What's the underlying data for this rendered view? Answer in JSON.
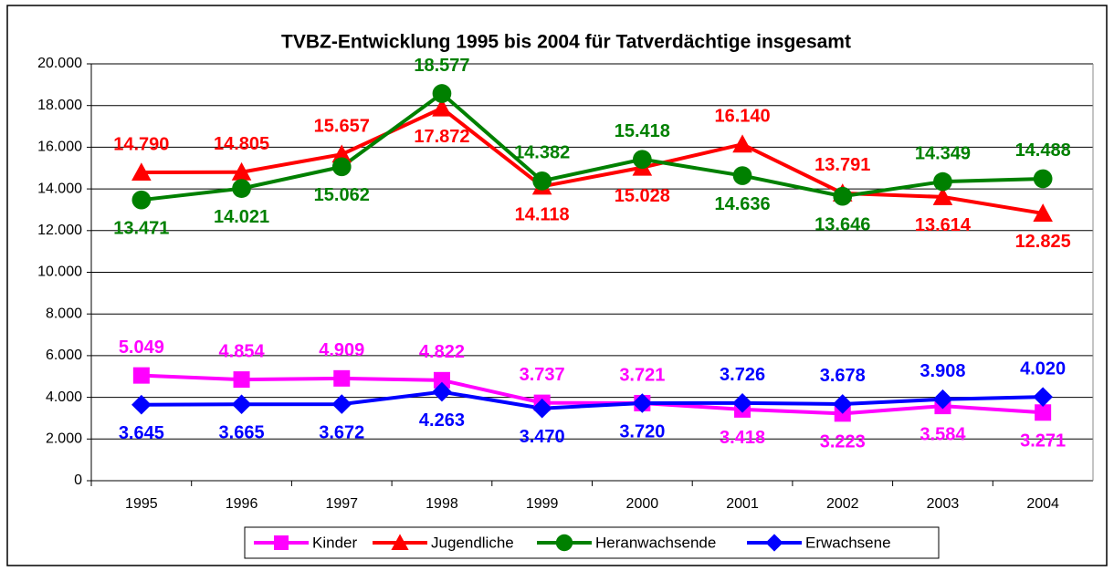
{
  "chart_data": {
    "type": "line",
    "title": "TVBZ-Entwicklung 1995 bis 2004 für Tatverdächtige insgesamt",
    "categories": [
      "1995",
      "1996",
      "1997",
      "1998",
      "1999",
      "2000",
      "2001",
      "2002",
      "2003",
      "2004"
    ],
    "series": [
      {
        "name": "Kinder",
        "color": "#ff00ff",
        "marker": "square",
        "values": [
          5049,
          4854,
          4909,
          4822,
          3737,
          3721,
          3418,
          3223,
          3584,
          3271
        ],
        "value_labels": [
          "5.049",
          "4.854",
          "4.909",
          "4.822",
          "3.737",
          "3.721",
          "3.418",
          "3.223",
          "3.584",
          "3.271"
        ]
      },
      {
        "name": "Jugendliche",
        "color": "#ff0000",
        "marker": "triangle",
        "values": [
          14790,
          14805,
          15657,
          17872,
          14118,
          15028,
          16140,
          13791,
          13614,
          12825
        ],
        "value_labels": [
          "14.790",
          "14.805",
          "15.657",
          "17.872",
          "14.118",
          "15.028",
          "16.140",
          "13.791",
          "13.614",
          "12.825"
        ]
      },
      {
        "name": "Heranwachsende",
        "color": "#008000",
        "marker": "circle",
        "values": [
          13471,
          14021,
          15062,
          18577,
          14382,
          15418,
          14636,
          13646,
          14349,
          14488
        ],
        "value_labels": [
          "13.471",
          "14.021",
          "15.062",
          "18.577",
          "14.382",
          "15.418",
          "14.636",
          "13.646",
          "14.349",
          "14.488"
        ]
      },
      {
        "name": "Erwachsene",
        "color": "#0000ff",
        "marker": "diamond",
        "values": [
          3645,
          3665,
          3672,
          4263,
          3470,
          3720,
          3726,
          3678,
          3908,
          4020
        ],
        "value_labels": [
          "3.645",
          "3.665",
          "3.672",
          "4.263",
          "3.470",
          "3.720",
          "3.726",
          "3.678",
          "3.908",
          "4.020"
        ]
      }
    ],
    "ylim": [
      0,
      20000
    ],
    "yticks": [
      0,
      {
        "value": 2000,
        "label": "2.000"
      },
      {
        "value": 4000,
        "label": "4.000"
      },
      {
        "value": 6000,
        "label": "6.000"
      },
      {
        "value": 8000,
        "label": "8.000"
      },
      {
        "value": 10000,
        "label": "10.000"
      },
      {
        "value": 12000,
        "label": "12.000"
      },
      {
        "value": 14000,
        "label": "14.000"
      },
      {
        "value": 16000,
        "label": "16.000"
      },
      {
        "value": 18000,
        "label": "18.000"
      },
      {
        "value": 20000,
        "label": "20.000"
      }
    ],
    "grid": true,
    "legend": "bottom"
  }
}
